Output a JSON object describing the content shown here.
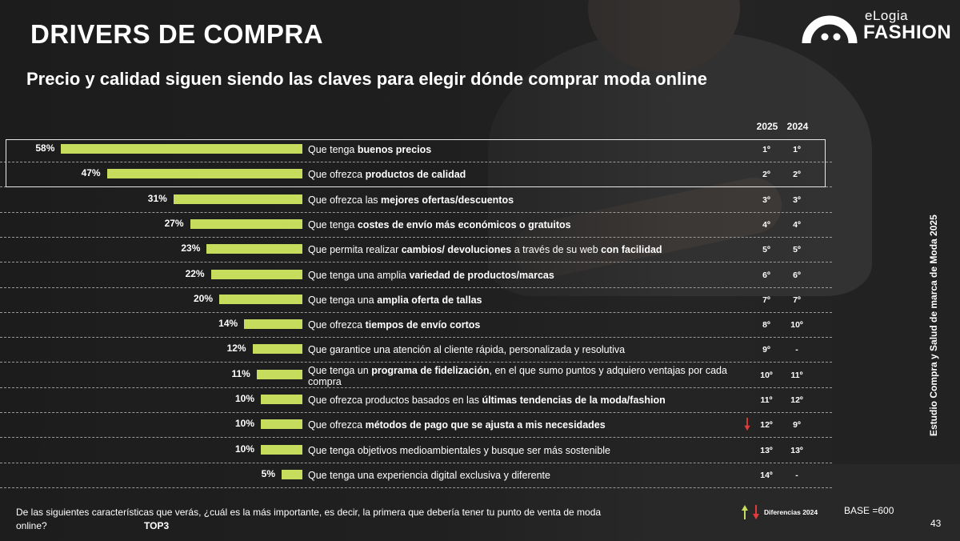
{
  "slide": {
    "title": "DRIVERS DE COMPRA",
    "subtitle": "Precio y calidad siguen siendo las claves para elegir dónde comprar moda online",
    "side_text": "Estudio Compra y Salud de marca de Moda 2025",
    "question": "De las siguientes características que verás, ¿cuál es la más importante, es decir, la primera que debería tener tu punto de venta de moda online?",
    "question_tag": "TOP3",
    "legend_label": "Diferencias 2024",
    "base": "BASE =600",
    "page_number": "43"
  },
  "logo": {
    "brand": "eLogia",
    "name": "FASHION"
  },
  "columns": {
    "y2025": "2025",
    "y2024": "2024"
  },
  "colors": {
    "bar": "#c5dc5c",
    "up": "#c5dc5c",
    "down": "#e23b3b"
  },
  "chart_data": {
    "type": "bar",
    "orientation": "horizontal",
    "unit": "%",
    "xlim": [
      0,
      60
    ],
    "highlighted_rows": [
      0,
      1
    ],
    "categories": [
      {
        "plain": "Que tenga ",
        "bold": "buenos precios",
        "rest": ""
      },
      {
        "plain": "Que ofrezca ",
        "bold": "productos de calidad",
        "rest": ""
      },
      {
        "plain": "Que ofrezca  las ",
        "bold": "mejores ofertas/descuentos",
        "rest": ""
      },
      {
        "plain": "Que tenga ",
        "bold": "costes de envío más económicos o gratuitos",
        "rest": ""
      },
      {
        "plain": "Que permita realizar ",
        "bold": "cambios/ devoluciones",
        "rest": " a través de su web ",
        "bold2": "con facilidad"
      },
      {
        "plain": "Que tenga una amplia ",
        "bold": "variedad de productos/marcas",
        "rest": ""
      },
      {
        "plain": "Que tenga una ",
        "bold": "amplia oferta de tallas",
        "rest": ""
      },
      {
        "plain": "Que ofrezca ",
        "bold": "tiempos de envío cortos",
        "rest": ""
      },
      {
        "plain": "Que garantice una atención al cliente rápida, personalizada y resolutiva",
        "bold": "",
        "rest": ""
      },
      {
        "plain": "Que tenga un ",
        "bold": "programa de fidelización",
        "rest": ", en el que sumo puntos y adquiero ventajas por cada compra"
      },
      {
        "plain": "Que ofrezca productos basados en las ",
        "bold": "últimas tendencias de la moda/fashion",
        "rest": ""
      },
      {
        "plain": "Que ofrezca ",
        "bold": "métodos de pago que se ajusta a mis necesidades",
        "rest": ""
      },
      {
        "plain": "Que tenga objetivos medioambientales y busque ser más sostenible",
        "bold": "",
        "rest": ""
      },
      {
        "plain": "Que tenga una experiencia digital exclusiva y diferente",
        "bold": "",
        "rest": ""
      }
    ],
    "values": [
      58,
      47,
      31,
      27,
      23,
      22,
      20,
      14,
      12,
      11,
      10,
      10,
      10,
      5
    ],
    "rank_2025": [
      "1º",
      "2º",
      "3º",
      "4º",
      "5º",
      "6º",
      "7º",
      "8º",
      "9º",
      "10º",
      "11º",
      "12º",
      "13º",
      "14º"
    ],
    "rank_2024": [
      "1º",
      "2º",
      "3º",
      "4º",
      "5º",
      "6º",
      "7º",
      "10º",
      "-",
      "11º",
      "12º",
      "9º",
      "13º",
      "-"
    ],
    "trend": [
      "",
      "",
      "",
      "",
      "",
      "",
      "",
      "",
      "",
      "",
      "",
      "down",
      "",
      ""
    ]
  }
}
